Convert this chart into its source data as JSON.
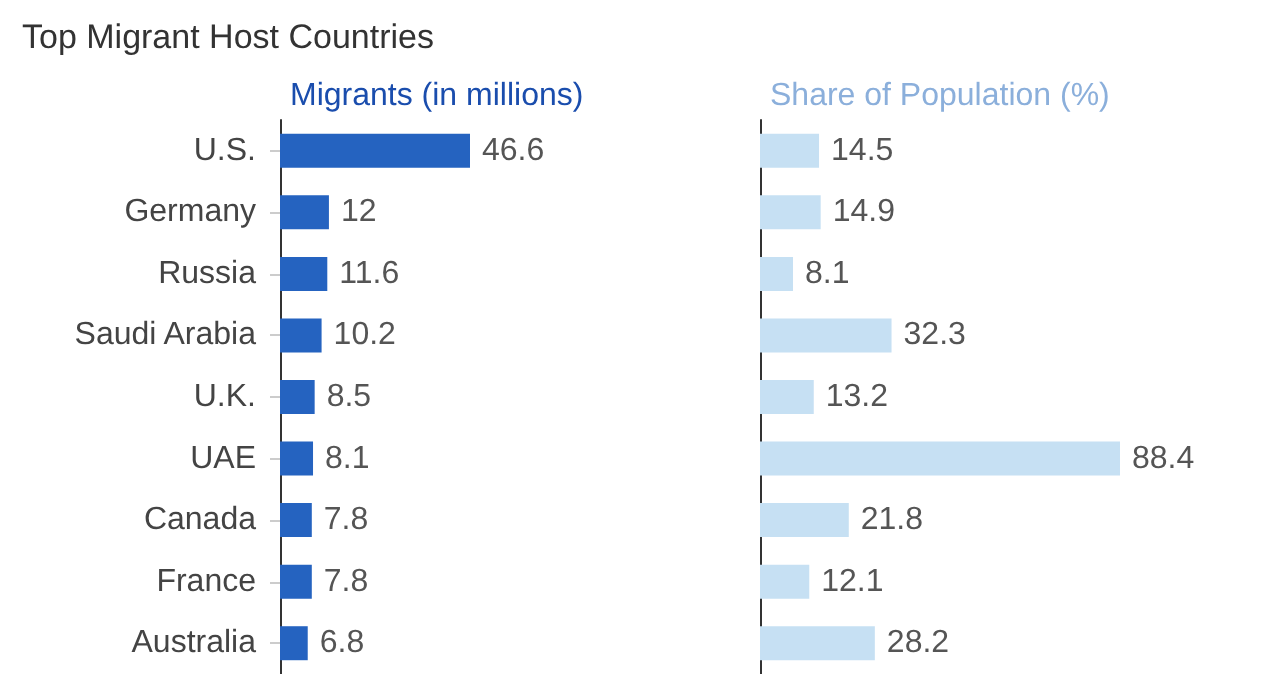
{
  "chart_data": [
    {
      "type": "bar",
      "title": "Top Migrant Host Countries",
      "xlabel": "Migrants (in millions)",
      "orientation": "horizontal",
      "data_labels": true,
      "tick_labels": "y",
      "categories": [
        "U.S.",
        "Germany",
        "Russia",
        "Saudi Arabia",
        "U.K.",
        "UAE",
        "Canada",
        "France",
        "Australia"
      ],
      "series": [
        {
          "color": "#2563c0",
          "values": [
            46.6,
            12,
            11.6,
            10.2,
            8.5,
            8.1,
            7.8,
            7.8,
            6.8
          ]
        }
      ]
    },
    {
      "type": "bar",
      "xlabel": "Share of Population (%)",
      "orientation": "horizontal",
      "data_labels": true,
      "tick_labels": false,
      "categories": [
        null,
        null,
        null,
        null,
        null,
        null,
        null,
        null,
        null
      ],
      "series": [
        {
          "color": "#c6e0f3",
          "values": [
            14.5,
            14.9,
            8.1,
            32.3,
            13.2,
            88.4,
            21.8,
            12.1,
            28.2
          ]
        }
      ]
    }
  ]
}
